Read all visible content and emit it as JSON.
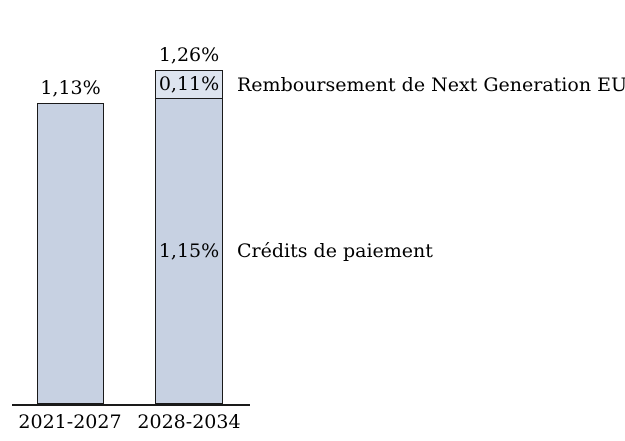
{
  "chart_data": {
    "type": "bar",
    "stacked": true,
    "categories": [
      "2021-2027",
      "2028-2034"
    ],
    "series": [
      {
        "name": "Crédits de paiement",
        "values": [
          1.13,
          1.15
        ]
      },
      {
        "name": "Remboursement de Next Generation EU",
        "values": [
          0,
          0.11
        ]
      }
    ],
    "value_format": "percent_comma_decimal",
    "ylim": [
      0,
      1.4
    ],
    "gridlines": false,
    "legend_position": "none",
    "bars": [
      {
        "category": "2021-2027",
        "total_label": "1,13%",
        "segments": [
          {
            "value": 1.13,
            "label": "",
            "color": "#c7d1e2"
          }
        ]
      },
      {
        "category": "2028-2034",
        "total_label": "1,26%",
        "segments": [
          {
            "value": 1.15,
            "label": "1,15%",
            "color": "#c7d1e2"
          },
          {
            "value": 0.11,
            "label": "0,11%",
            "color": "#dde4ef"
          }
        ]
      }
    ],
    "annotations": [
      {
        "text": "Remboursement de Next Generation EU"
      },
      {
        "text": "Crédits de paiement"
      }
    ],
    "colors": {
      "bar_main": "#c7d1e2",
      "bar_light": "#dde4ef",
      "border": "#1a1a1a",
      "text": "#000000"
    }
  }
}
